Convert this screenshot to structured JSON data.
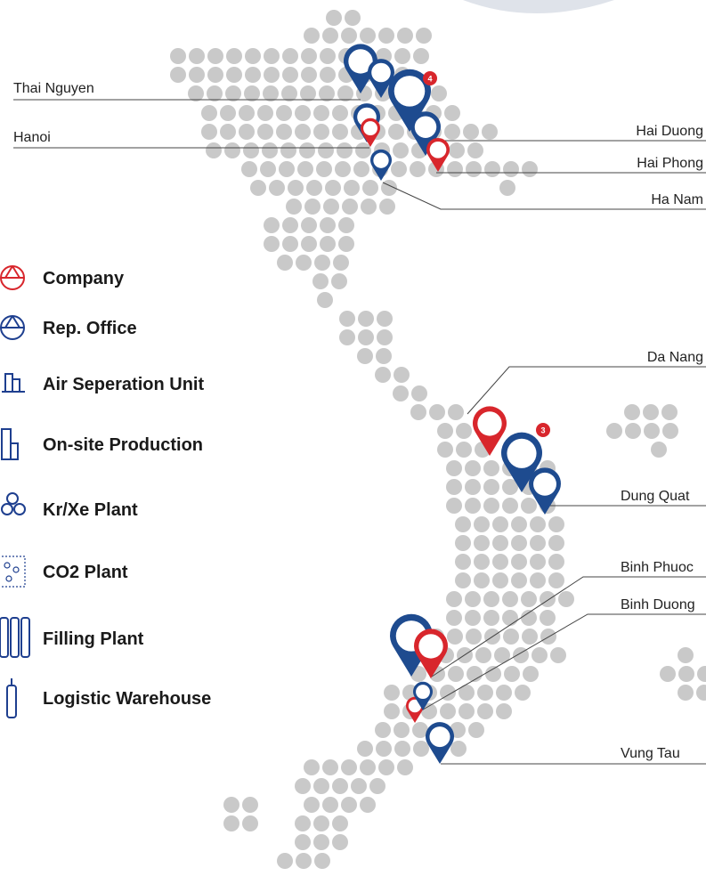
{
  "locations": [
    {
      "label": "Thai Nguyen"
    },
    {
      "label": "Hanoi"
    },
    {
      "label": "Hai Duong"
    },
    {
      "label": "Hai Phong"
    },
    {
      "label": "Ha Nam"
    },
    {
      "label": "Da Nang"
    },
    {
      "label": "Dung Quat"
    },
    {
      "label": "Binh Phuoc"
    },
    {
      "label": "Binh Duong"
    },
    {
      "label": "Vung Tau"
    }
  ],
  "legend": [
    {
      "label": "Company"
    },
    {
      "label": "Rep. Office"
    },
    {
      "label": "Air Seperation Unit"
    },
    {
      "label": "On-site Production"
    },
    {
      "label": "Kr/Xe Plant"
    },
    {
      "label": "CO2 Plant"
    },
    {
      "label": "Filling Plant"
    },
    {
      "label": "Logistic Warehouse"
    }
  ],
  "badges": [
    4,
    3
  ]
}
